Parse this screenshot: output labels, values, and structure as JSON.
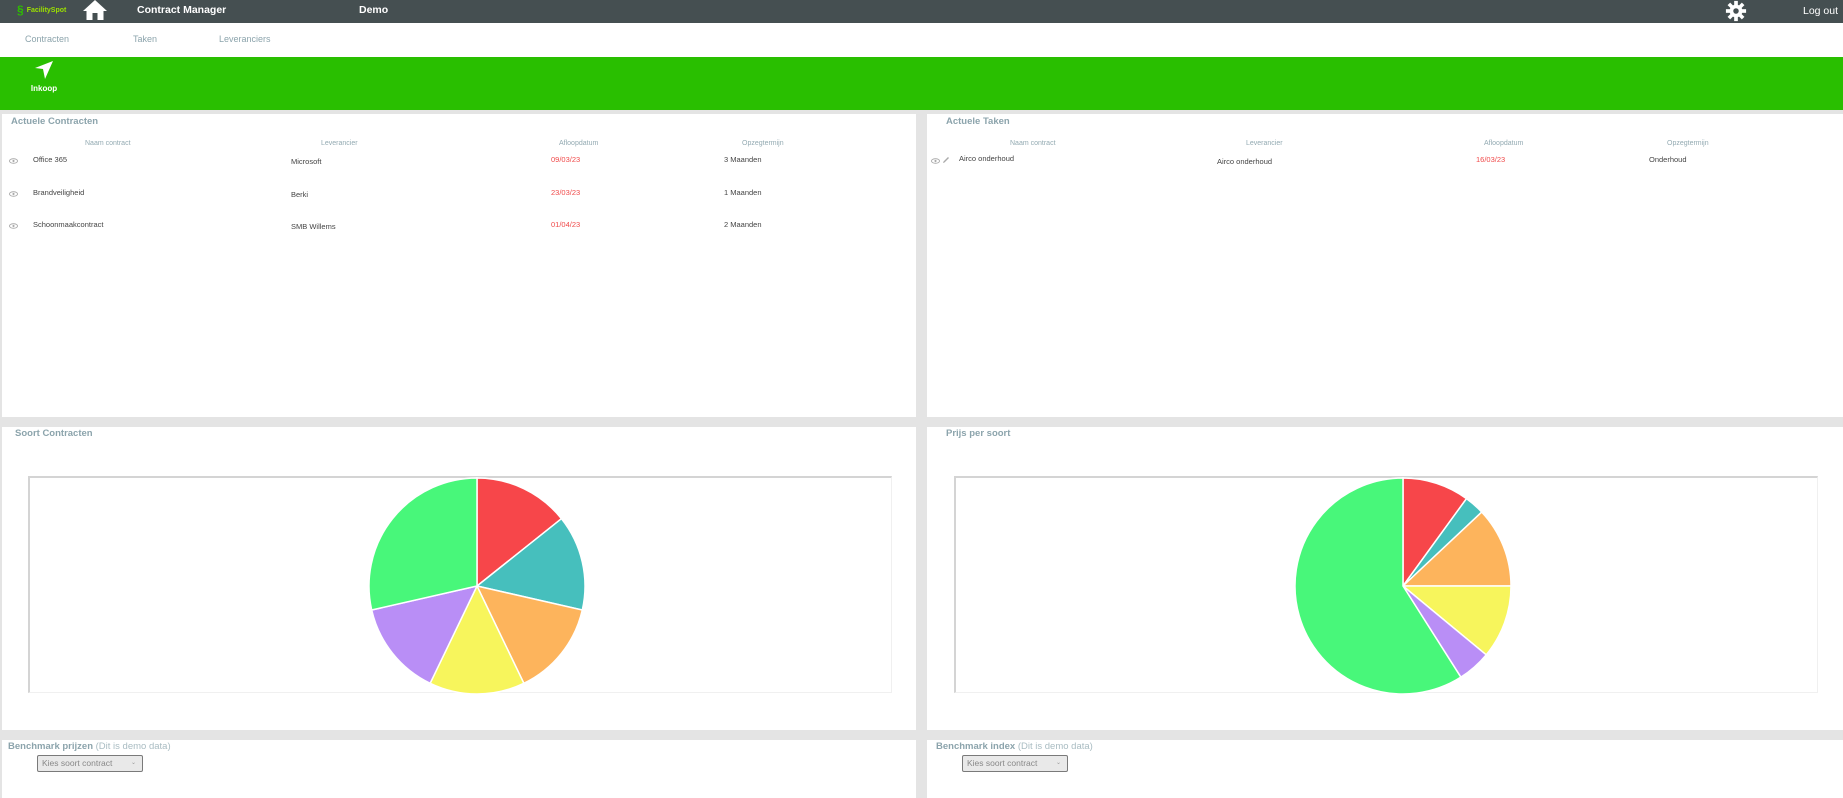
{
  "header": {
    "logo_text": "FacilitySpot",
    "app_title": "Contract Manager",
    "environment": "Demo",
    "logout_label": "Log out"
  },
  "subnav": {
    "items": [
      {
        "label": "Contracten"
      },
      {
        "label": "Taken"
      },
      {
        "label": "Leveranciers"
      }
    ]
  },
  "module_bar": {
    "active_module": "Inkoop",
    "color": "#29bf00"
  },
  "contracts_panel": {
    "title": "Actuele Contracten",
    "columns": [
      "Naam contract",
      "Leverancier",
      "Afloopdatum",
      "Opzegtermijn"
    ],
    "rows": [
      {
        "name": "Office 365",
        "supplier": "Microsoft",
        "end_date": "09/03/23",
        "notice": "3 Maanden"
      },
      {
        "name": "Brandveiligheid",
        "supplier": "Berki",
        "end_date": "23/03/23",
        "notice": "1 Maanden"
      },
      {
        "name": "Schoonmaakcontract",
        "supplier": "SMB Willems",
        "end_date": "01/04/23",
        "notice": "2 Maanden"
      }
    ]
  },
  "tasks_panel": {
    "title": "Actuele Taken",
    "columns": [
      "Naam contract",
      "Leverancier",
      "Afloopdatum",
      "Opzegtermijn"
    ],
    "rows": [
      {
        "name": "Airco onderhoud",
        "supplier": "Airco onderhoud",
        "end_date": "16/03/23",
        "notice": "Onderhoud"
      }
    ]
  },
  "chart_titles": {
    "left": "Soort Contracten",
    "right": "Prijs per soort"
  },
  "chart_data": [
    {
      "type": "pie",
      "title": "Soort Contracten",
      "categories": [
        "Red",
        "Teal",
        "Orange",
        "Yellow",
        "Purple",
        "Green"
      ],
      "values": [
        1,
        1,
        1,
        1,
        1,
        2
      ],
      "colors": [
        "#f7464a",
        "#46bfbd",
        "#fdb45c",
        "#f7f55c",
        "#b98ef6",
        "#48f77a"
      ],
      "legend": "none"
    },
    {
      "type": "pie",
      "title": "Prijs per soort",
      "categories": [
        "Red",
        "Teal",
        "Orange",
        "Yellow",
        "Purple",
        "Green"
      ],
      "values": [
        10,
        3,
        12,
        11,
        5,
        59
      ],
      "colors": [
        "#f7464a",
        "#46bfbd",
        "#fdb45c",
        "#f7f55c",
        "#b98ef6",
        "#48f77a"
      ],
      "legend": "none"
    }
  ],
  "benchmark_prices": {
    "title": "Benchmark prijzen",
    "note": "(Dit is demo data)",
    "select_value": "Kies soort contract"
  },
  "benchmark_index": {
    "title": "Benchmark index",
    "note": "(Dit is demo data)",
    "select_value": "Kies soort contract"
  }
}
